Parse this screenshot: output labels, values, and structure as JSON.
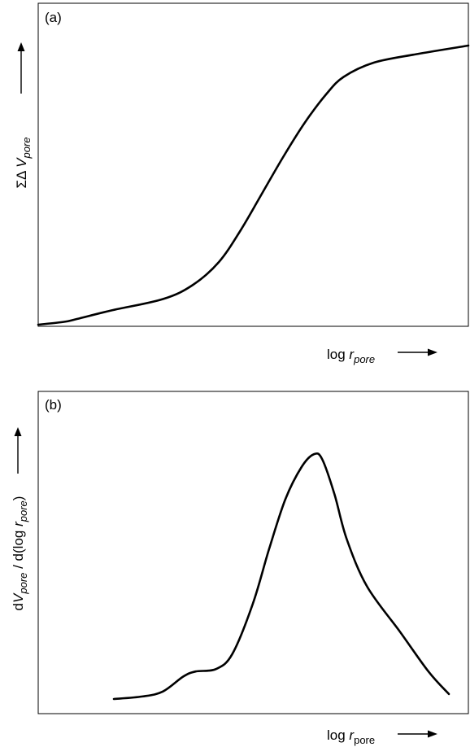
{
  "chart_data": [
    {
      "type": "line",
      "panel_label": "(a)",
      "xlabel": {
        "main": "log ",
        "var": "r",
        "sub": "pore"
      },
      "ylabel": {
        "pre": "ΣΔ ",
        "var": "V",
        "sub": "pore"
      },
      "series": [
        {
          "points": [
            [
              0.0,
              0.0
            ],
            [
              0.06,
              0.01
            ],
            [
              0.09,
              0.02
            ],
            [
              0.17,
              0.05
            ],
            [
              0.29,
              0.09
            ],
            [
              0.36,
              0.14
            ],
            [
              0.42,
              0.22
            ],
            [
              0.47,
              0.33
            ],
            [
              0.52,
              0.46
            ],
            [
              0.57,
              0.59
            ],
            [
              0.62,
              0.71
            ],
            [
              0.67,
              0.81
            ],
            [
              0.71,
              0.87
            ],
            [
              0.78,
              0.92
            ],
            [
              0.88,
              0.95
            ],
            [
              1.0,
              0.98
            ]
          ]
        }
      ],
      "xlim": [
        0,
        1
      ],
      "ylim": [
        0,
        1
      ],
      "grid": false
    },
    {
      "type": "line",
      "panel_label": "(b)",
      "xlabel": {
        "main": "log ",
        "var": "r",
        "sub": "pore"
      },
      "ylabel": {
        "pre": "d",
        "var": "V",
        "sub": "pore",
        "mid": " / d(log ",
        "var2": "r",
        "sub2": "pore",
        "post": ")"
      },
      "series": [
        {
          "points": [
            [
              0.18,
              0.0
            ],
            [
              0.25,
              0.01
            ],
            [
              0.3,
              0.03
            ],
            [
              0.35,
              0.09
            ],
            [
              0.38,
              0.11
            ],
            [
              0.43,
              0.12
            ],
            [
              0.47,
              0.18
            ],
            [
              0.52,
              0.38
            ],
            [
              0.56,
              0.6
            ],
            [
              0.6,
              0.8
            ],
            [
              0.64,
              0.93
            ],
            [
              0.67,
              0.98
            ],
            [
              0.69,
              0.96
            ],
            [
              0.72,
              0.82
            ],
            [
              0.75,
              0.64
            ],
            [
              0.8,
              0.45
            ],
            [
              0.88,
              0.27
            ],
            [
              0.95,
              0.11
            ],
            [
              1.0,
              0.02
            ]
          ]
        }
      ],
      "xlim": [
        0,
        1
      ],
      "ylim": [
        0,
        1
      ],
      "grid": false
    }
  ]
}
